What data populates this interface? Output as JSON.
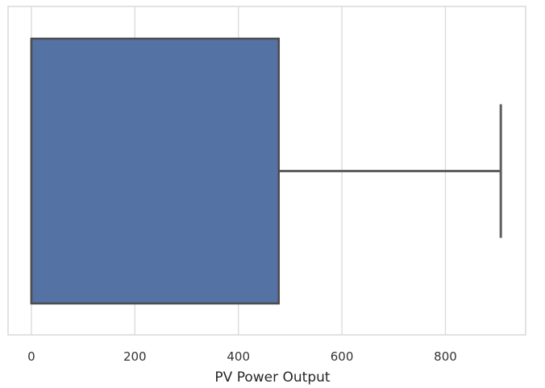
{
  "chart_data": {
    "type": "box",
    "orientation": "horizontal",
    "xlabel": "PV Power Output",
    "ylabel": "",
    "xlim": [
      -45,
      955
    ],
    "xticks": [
      0,
      200,
      400,
      600,
      800
    ],
    "tick_labels": [
      "0",
      "200",
      "400",
      "600",
      "800"
    ],
    "grid": "vertical",
    "box": {
      "min": 0,
      "q1": 0,
      "median": 0,
      "q3": 478,
      "max": 907
    },
    "colors": {
      "box_fill": "#5572A4",
      "box_edge": "#4D4D4D",
      "whisker": "#5F5F5F",
      "grid": "#D9D9D9",
      "frame": "#D9D9D9"
    }
  }
}
